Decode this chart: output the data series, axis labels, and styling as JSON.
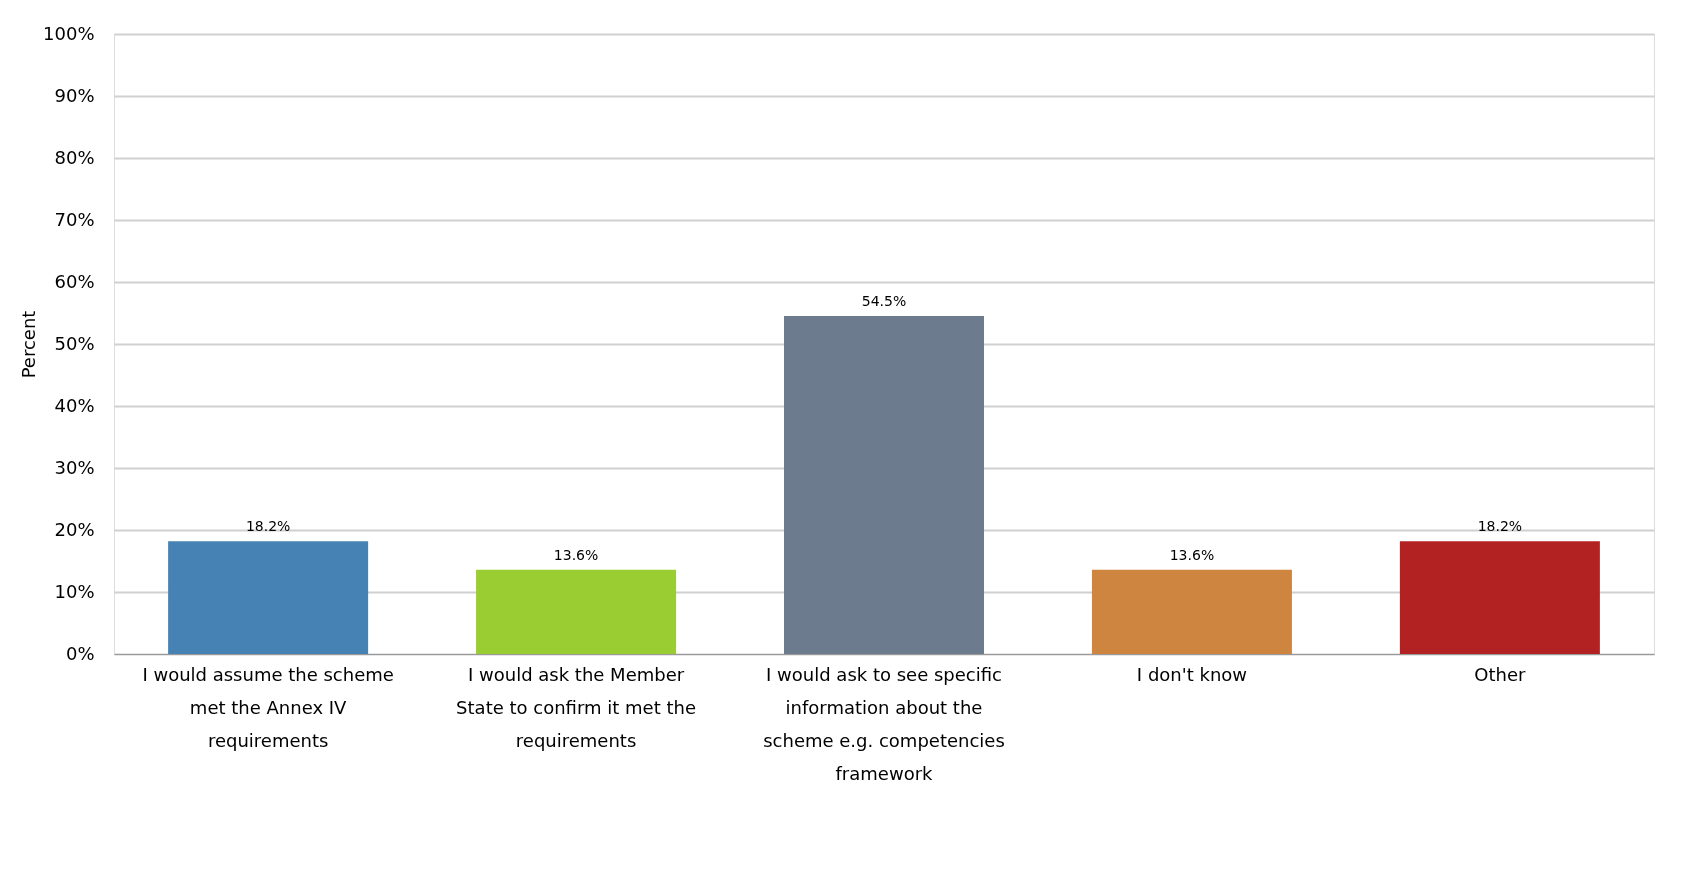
{
  "chart_data": {
    "type": "bar",
    "ylabel": "Percent",
    "categories": [
      "I would assume the scheme met the Annex IV requirements",
      "I would ask the Member State to confirm it met the requirements",
      "I would ask to see specific information about the scheme e.g. competencies framework",
      "I don't know",
      "Other"
    ],
    "values": [
      18.2,
      13.6,
      54.5,
      13.6,
      18.2
    ],
    "colors": [
      "#4682b4",
      "#9acd32",
      "#6c7b8d",
      "#cd853f",
      "#b22222"
    ],
    "value_labels": [
      "18.2%",
      "13.6%",
      "54.5%",
      "13.6%",
      "18.2%"
    ],
    "ylim": [
      0,
      100
    ],
    "yticks": [
      {
        "value": 0,
        "label": "0%"
      },
      {
        "value": 10,
        "label": "10%"
      },
      {
        "value": 20,
        "label": "20%"
      },
      {
        "value": 30,
        "label": "30%"
      },
      {
        "value": 40,
        "label": "40%"
      },
      {
        "value": 50,
        "label": "50%"
      },
      {
        "value": 60,
        "label": "60%"
      },
      {
        "value": 70,
        "label": "70%"
      },
      {
        "value": 80,
        "label": "80%"
      },
      {
        "value": 90,
        "label": "90%"
      },
      {
        "value": 100,
        "label": "100%"
      }
    ],
    "grid": "y",
    "legend": false
  }
}
